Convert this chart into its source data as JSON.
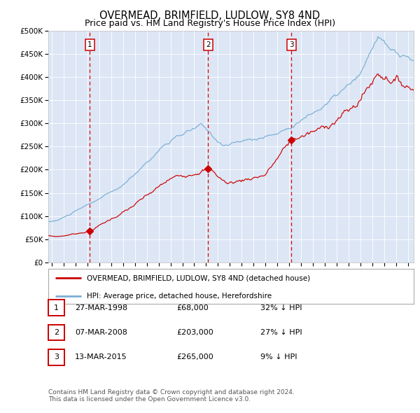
{
  "title": "OVERMEAD, BRIMFIELD, LUDLOW, SY8 4ND",
  "subtitle": "Price paid vs. HM Land Registry's House Price Index (HPI)",
  "title_fontsize": 10.5,
  "subtitle_fontsize": 9,
  "ylim": [
    0,
    500000
  ],
  "yticks": [
    0,
    50000,
    100000,
    150000,
    200000,
    250000,
    300000,
    350000,
    400000,
    450000,
    500000
  ],
  "ytick_labels": [
    "£0",
    "£50K",
    "£100K",
    "£150K",
    "£200K",
    "£250K",
    "£300K",
    "£350K",
    "£400K",
    "£450K",
    "£500K"
  ],
  "xlim_start": 1994.7,
  "xlim_end": 2025.5,
  "plot_bg_color": "#dce6f5",
  "red_color": "#cc0000",
  "blue_color": "#7bafd4",
  "dashed_color": "#dd0000",
  "transaction_dates": [
    1998.21,
    2008.18,
    2015.2
  ],
  "transaction_prices": [
    68000,
    203000,
    265000
  ],
  "transaction_labels": [
    "1",
    "2",
    "3"
  ],
  "legend_label_red": "OVERMEAD, BRIMFIELD, LUDLOW, SY8 4ND (detached house)",
  "legend_label_blue": "HPI: Average price, detached house, Herefordshire",
  "table_data": [
    [
      "1",
      "27-MAR-1998",
      "£68,000",
      "32% ↓ HPI"
    ],
    [
      "2",
      "07-MAR-2008",
      "£203,000",
      "27% ↓ HPI"
    ],
    [
      "3",
      "13-MAR-2015",
      "£265,000",
      "9% ↓ HPI"
    ]
  ],
  "footnote": "Contains HM Land Registry data © Crown copyright and database right 2024.\nThis data is licensed under the Open Government Licence v3.0.",
  "footnote_fontsize": 6.5,
  "legend_fontsize": 7.5,
  "tick_label_fontsize": 7.5,
  "table_fontsize": 8
}
